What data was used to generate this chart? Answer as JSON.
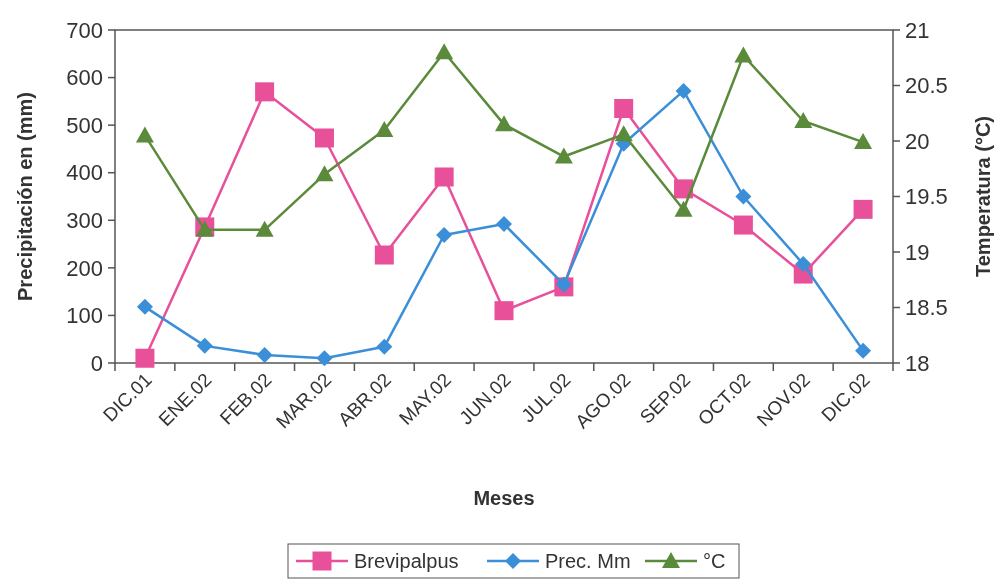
{
  "chart_data": {
    "type": "line",
    "xlabel": "Meses",
    "ylabel": "Precipitación en (mm)",
    "y2label": "Temperatura (°C)",
    "categories": [
      "DIC.01",
      "ENE.02",
      "FEB.02",
      "MAR.02",
      "ABR.02",
      "MAY.02",
      "JUN.02",
      "JUL.02",
      "AGO.02",
      "SEP.02",
      "OCT.02",
      "NOV.02",
      "DIC.02"
    ],
    "series": [
      {
        "name": "Brevipalpus",
        "color": "#e8509a",
        "marker": "square",
        "values": [
          10,
          286,
          570,
          473,
          227,
          391,
          110,
          160,
          535,
          366,
          290,
          187,
          323
        ]
      },
      {
        "name": "Prec. Mm",
        "color": "#3a8fd8",
        "marker": "diamond",
        "values": [
          118,
          36,
          17,
          10,
          34,
          269,
          292,
          165,
          461,
          572,
          350,
          208,
          26
        ]
      },
      {
        "name": "°C",
        "color": "#5a8a3a",
        "marker": "triangle",
        "axis": "y2",
        "values": [
          20.05,
          19.2,
          19.2,
          19.7,
          20.1,
          20.8,
          20.15,
          19.86,
          20.06,
          19.38,
          20.77,
          20.18,
          19.99
        ]
      }
    ],
    "ylim": [
      0,
      700
    ],
    "yticks": [
      0,
      100,
      200,
      300,
      400,
      500,
      600,
      700
    ],
    "y2lim": [
      18,
      21
    ],
    "y2ticks": [
      18,
      18.5,
      19,
      19.5,
      20,
      20.5,
      21
    ],
    "grid": false,
    "legend": "bottom",
    "line_style": "solid"
  }
}
